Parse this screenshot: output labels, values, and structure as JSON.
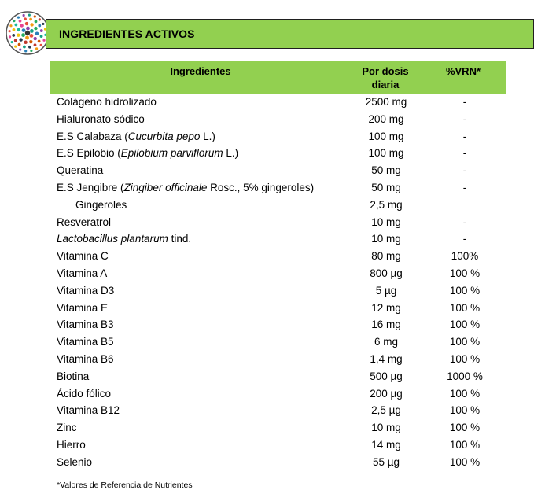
{
  "header": {
    "title": "INGREDIENTES ACTIVOS"
  },
  "table": {
    "headers": {
      "ingredient": "Ingredientes",
      "dose_line1": "Por dosis",
      "dose_line2": "diaria",
      "vrn": "%VRN*"
    },
    "rows": [
      {
        "name": "Colágeno hidrolizado",
        "dose": "2500 mg",
        "vrn": "-"
      },
      {
        "name": "Hialuronato sódico",
        "dose": "200 mg",
        "vrn": "-"
      },
      {
        "name_pre": "E.S Calabaza (",
        "name_it": "Cucurbita pepo",
        "name_post": " L.)",
        "dose": "100 mg",
        "vrn": "-"
      },
      {
        "name_pre": "E.S Epilobio (",
        "name_it": "Epilobium parviflorum",
        "name_post": " L.)",
        "dose": "100 mg",
        "vrn": "-"
      },
      {
        "name": "Queratina",
        "dose": "50 mg",
        "vrn": "-"
      },
      {
        "name_pre": "E.S Jengibre (",
        "name_it": "Zingiber officinale",
        "name_post": " Rosc., 5% gingeroles)",
        "dose": "50 mg",
        "vrn": "-"
      },
      {
        "name": "Gingeroles",
        "dose": "2,5 mg",
        "vrn": ""
      },
      {
        "name": "Resveratrol",
        "dose": "10 mg",
        "vrn": "-"
      },
      {
        "name_pre": "",
        "name_it": "Lactobacillus plantarum",
        "name_post": " tind.",
        "dose": "10 mg",
        "vrn": "-"
      },
      {
        "name": "Vitamina C",
        "dose": "80 mg",
        "vrn": "100%"
      },
      {
        "name": "Vitamina A",
        "dose": "800 µg",
        "vrn": "100 %"
      },
      {
        "name": "Vitamina D3",
        "dose": "5 µg",
        "vrn": "100 %"
      },
      {
        "name": "Vitamina E",
        "dose": "12 mg",
        "vrn": "100 %"
      },
      {
        "name": "Vitamina B3",
        "dose": "16 mg",
        "vrn": "100 %"
      },
      {
        "name": "Vitamina B5",
        "dose": "6 mg",
        "vrn": "100 %"
      },
      {
        "name": "Vitamina B6",
        "dose": "1,4 mg",
        "vrn": "100 %"
      },
      {
        "name": "Biotina",
        "dose": "500 µg",
        "vrn": "1000 %"
      },
      {
        "name": "Ácido fólico",
        "dose": "200 µg",
        "vrn": "100 %"
      },
      {
        "name": "Vitamina B12",
        "dose": "2,5 µg",
        "vrn": "100 %"
      },
      {
        "name": "Zinc",
        "dose": "10 mg",
        "vrn": "100 %"
      },
      {
        "name": "Hierro",
        "dose": "14 mg",
        "vrn": "100 %"
      },
      {
        "name": "Selenio",
        "dose": "55 µg",
        "vrn": "100 %"
      }
    ]
  },
  "footnote": "*Valores de Referencia de Nutrientes",
  "colors": {
    "accent": "#92d050",
    "border": "#1f1f1f"
  },
  "icons": {
    "logo": "colorful-dots-circle-logo"
  }
}
